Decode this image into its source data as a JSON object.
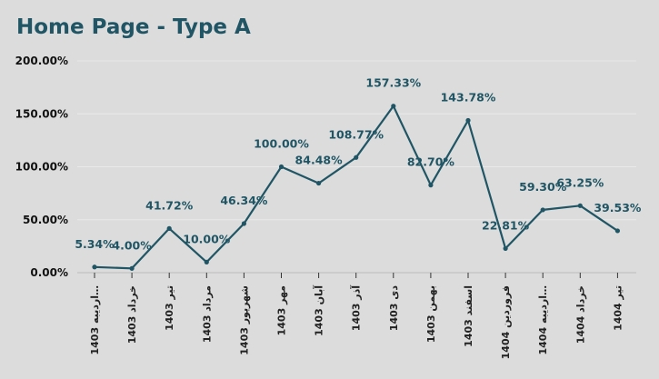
{
  "title": "Home Page - Type A",
  "chart_data": {
    "type": "line",
    "title": "Home Page - Type A",
    "categories": [
      "1403 اردیبه…",
      "1403 خرداد",
      "1403 تیر",
      "1403 مرداد",
      "1403 شهریور",
      "1403 مهر",
      "1403 آبان",
      "1403 آذر",
      "1403 دی",
      "1403 بهمن",
      "1403 اسفند",
      "1404 فروردین",
      "1404 اردیبه…",
      "1404 خرداد",
      "1404 تیر"
    ],
    "values": [
      5.34,
      4.0,
      41.72,
      10.0,
      46.34,
      100.0,
      84.48,
      108.77,
      157.33,
      82.7,
      143.78,
      22.81,
      59.3,
      63.25,
      39.53
    ],
    "data_labels": [
      "5.34%",
      "4.00%",
      "41.72%",
      "10.00%",
      "46.34%",
      "100.00%",
      "84.48%",
      "108.77%",
      "157.33%",
      "82.70%",
      "143.78%",
      "22.81%",
      "59.30%",
      "63.25%",
      "39.53%"
    ],
    "yticks": [
      "0.00%",
      "50.00%",
      "100.00%",
      "150.00%",
      "200.00%"
    ],
    "ylim": [
      0,
      200
    ],
    "grid": true,
    "line_color": "#1f5564",
    "xlabel": "",
    "ylabel": ""
  }
}
